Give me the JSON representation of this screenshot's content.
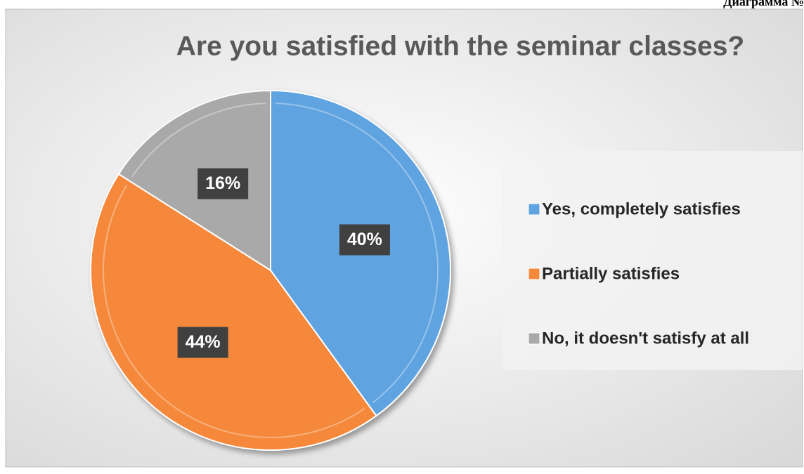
{
  "chart_data": {
    "type": "pie",
    "title": "Are you satisfied with the seminar classes?",
    "caption": "Диаграмма №",
    "categories": [
      "Yes, completely satisfies",
      "Partially satisfies",
      "No, it doesn't satisfy at all"
    ],
    "values": [
      40,
      44,
      16
    ],
    "value_labels": [
      "40%",
      "44%",
      "16%"
    ],
    "colors": [
      "#5fa3e0",
      "#f5883a",
      "#a9a9a9"
    ],
    "legend": "right"
  }
}
